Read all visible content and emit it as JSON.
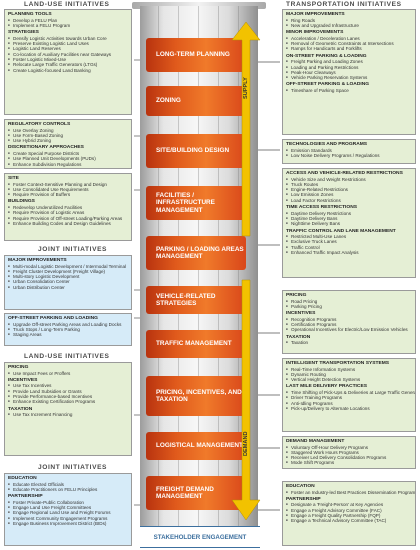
{
  "headers": {
    "landuse_top": "LAND-USE INITIATIVES",
    "joint_mid": "JOINT INITIATIVES",
    "landuse_mid": "LAND-USE INITIATIVES",
    "joint_bottom": "JOINT INITIATIVES",
    "transport": "TRANSPORTATION INITIATIVES"
  },
  "pillar": {
    "bands": [
      "Long-Term Planning",
      "Zoning",
      "Site/Building Design",
      "Facilities / Infrastructure Management",
      "Parking / Loading Areas Management",
      "Vehicle-Related Strategies",
      "Traffic Management",
      "Pricing, Incentives, and Taxation",
      "Logistical Management",
      "Freight Demand Management"
    ],
    "supply_label": "Supply",
    "demand_label": "Demand",
    "base_label": "Stakeholder Engagement"
  },
  "left_panels": [
    {
      "color": "green",
      "sections": [
        {
          "title": "Planning Tools",
          "items": [
            "Develop a FELU Plan",
            "Implement a FELU Program"
          ]
        },
        {
          "title": "Strategies",
          "items": [
            "Densify Logistic Activities towards Urban Core",
            "Preserve Existing Logistic Land Uses",
            "Logistic Land Reserves",
            "Co-location of Auxiliary Facilities near Gateways",
            "Foster Logistic Mixed-Use",
            "Relocate Large Traffic Generators (LTGs)",
            "Create Logistic-focused Land Banking"
          ]
        }
      ]
    },
    {
      "color": "green",
      "sections": [
        {
          "title": "Regulatory Controls",
          "items": [
            "Use Overlay Zoning",
            "Use Form-Based Zoning",
            "Use Hybrid Zoning"
          ]
        },
        {
          "title": "Discretionary Approaches",
          "items": [
            "Create Special Purpose Districts",
            "Use Planned Unit Developments (PUDs)",
            "Enhance Subdivision Regulations"
          ]
        }
      ]
    },
    {
      "color": "green",
      "sections": [
        {
          "title": "Site",
          "items": [
            "Foster Context-Sensitive Planning and Design",
            "Use Consolidated Use Requirements",
            "Require Provision of Buffers"
          ]
        },
        {
          "title": "Buildings",
          "items": [
            "Redevelop Underutilized Facilities",
            "Require Provision of Logistic Areas",
            "Require Provision of Off-street Loading/Parking Areas",
            "Enhance Building Codes and Design Guidelines"
          ]
        }
      ]
    },
    {
      "color": "blue",
      "sections": [
        {
          "title": "Major Improvements",
          "items": [
            "Multi-modal Logistic Development / Intermodal Terminal",
            "Freight Cluster Development (Freight Village)",
            "Multi-story Logistic Development",
            "Urban Consolidation Center",
            "Urban Distribution Center"
          ]
        }
      ]
    },
    {
      "color": "blue",
      "sections": [
        {
          "title": "Off-Street Parking and Loading",
          "items": [
            "Upgrade Off-street Parking Areas and Loading Docks",
            "Truck Stops / Long-Term Parking",
            "Staging Areas"
          ]
        }
      ]
    },
    {
      "color": "green",
      "sections": [
        {
          "title": "Pricing",
          "items": [
            "Use Impact Fees or Proffers"
          ]
        },
        {
          "title": "Incentives",
          "items": [
            "Use Tax Incentives",
            "Provide Land Subsidies or Grants",
            "Provide Performance-based Incentives",
            "Enhance Existing Certification Programs"
          ]
        },
        {
          "title": "Taxation",
          "items": [
            "Use Tax Increment Financing"
          ]
        }
      ]
    },
    {
      "color": "blue",
      "sections": [
        {
          "title": "Education",
          "items": [
            "Educate Elected Officials",
            "Educate Practitioners on FELU Principles"
          ]
        },
        {
          "title": "Partnership",
          "items": [
            "Foster Private-Public Collaboration",
            "Engage Land Use Freight Committees",
            "Engage Regional Land Use and Freight Forums",
            "Implement Community Engagement Programs",
            "Engage Business Improvement District (BIDs)"
          ]
        }
      ]
    }
  ],
  "right_panels": [
    {
      "sections": [
        {
          "title": "Major Improvements",
          "items": [
            "Ring Roads",
            "New and Upgraded Infrastructure"
          ]
        },
        {
          "title": "Minor Improvements",
          "items": [
            "Acceleration / Deceleration Lanes",
            "Removal of Geometric Constraints at Intersections",
            "Ramps for Handicarts and Forklifts"
          ]
        },
        {
          "title": "On-Street Parking & Loading",
          "items": [
            "Freight Parking and Loading Zones",
            "Loading and Parking Restrictions",
            "Peak-Hour Clearways",
            "Vehicle Parking Reservation Systems"
          ]
        },
        {
          "title": "Off-Street Parking & Loading",
          "items": [
            "Timeshare of Parking Space"
          ]
        }
      ]
    },
    {
      "sections": [
        {
          "title": "Technologies and Programs",
          "items": [
            "Emission Standards",
            "Low Noise Delivery Programs / Regulations"
          ]
        }
      ]
    },
    {
      "sections": [
        {
          "title": "Access and Vehicle-Related Restrictions",
          "items": [
            "Vehicle Size and Weight Restrictions",
            "Truck Routes",
            "Engine-Related Restrictions",
            "Low Emission Zones",
            "Load Factor Restrictions"
          ]
        },
        {
          "title": "Time Access Restrictions",
          "items": [
            "Daytime Delivery Restrictions",
            "Daytime Delivery Bans",
            "Nighttime Delivery Bans"
          ]
        },
        {
          "title": "Traffic Control and Lane Management",
          "items": [
            "Restricted Multi-Use Lanes",
            "Exclusive Truck Lanes",
            "Traffic Control",
            "Enhanced Traffic Impact Analysis"
          ]
        }
      ]
    },
    {
      "sections": [
        {
          "title": "Pricing",
          "items": [
            "Road Pricing",
            "Parking Pricing"
          ]
        },
        {
          "title": "Incentives",
          "items": [
            "Recognition Programs",
            "Certification Programs",
            "Operational Incentives for Electric/Low Emission Vehicles"
          ]
        },
        {
          "title": "Taxation",
          "items": [
            "Taxation"
          ]
        }
      ]
    },
    {
      "sections": [
        {
          "title": "Intelligent Transportation Systems",
          "items": [
            "Real-Time Information Systems",
            "Dynamic Routing",
            "Vertical Height Detection Systems"
          ]
        },
        {
          "title": "Last Mile Delivery Practices",
          "items": [
            "Time Shifting of Pick-Ups & Deliveries at Large Traffic Generators",
            "Driver Training Programs",
            "Anti-Idling Programs",
            "Pick-up/Delivery to Alternate Locations"
          ]
        }
      ]
    },
    {
      "sections": [
        {
          "title": "Demand Management",
          "items": [
            "Voluntary Off-Hour Delivery Programs",
            "Staggered Work Hours Programs",
            "Receiver Led Delivery Consolidation Programs",
            "Mode Shift Programs"
          ]
        }
      ]
    },
    {
      "sections": [
        {
          "title": "Education",
          "items": [
            "Foster an Industry-led Best Practices Dissemination Program"
          ]
        },
        {
          "title": "Partnership",
          "items": [
            "Designate a 'Freight-Person' at Key Agencies",
            "Engage a Freight Advisory Committee (FAC)",
            "Engage a Freight Quality Partnership (FQP)",
            "Engage a Technical Advisory Committee (TAC)"
          ]
        }
      ]
    }
  ],
  "colors": {
    "orange": "#e8601f",
    "green_bg": "#e5efd5",
    "blue_bg": "#d6ebf8",
    "arrow_yellow": "#f2c200",
    "base_blue": "#3c6f9e"
  }
}
